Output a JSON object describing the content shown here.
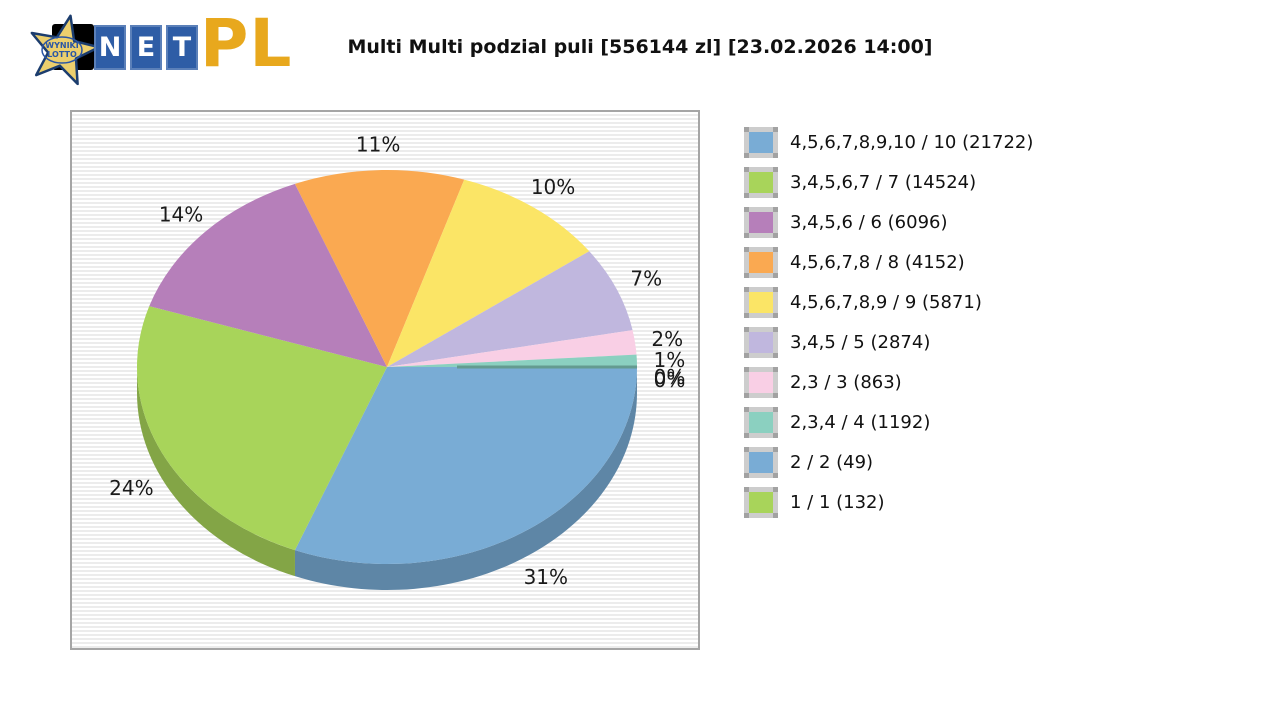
{
  "logo": {
    "star_line1": "WYNIKI",
    "star_line2": "LOTTO",
    "net_letters": [
      "N",
      "E",
      "T"
    ],
    "suffix": "PL",
    "colors": {
      "star_fill": "#eccf6d",
      "star_stroke": "#1c3d6e",
      "box_blue": "#2e5da6",
      "pl_gold": "#e8a81d"
    }
  },
  "title": "Multi Multi podzial puli [556144 zl] [23.02.2026 14:00]",
  "chart_data": {
    "type": "pie",
    "style": "3d",
    "title": "Multi Multi podzial puli [556144 zl] [23.02.2026 14:00]",
    "pool_total": "556144 zl",
    "draw_datetime": "23.02.2026 14:00",
    "unit": "%",
    "start_angle_deg": 0,
    "direction": "clockwise",
    "legend_position": "right",
    "slices": [
      {
        "label": "4,5,6,7,8,9,10 / 10",
        "winners": 21722,
        "percent": 31,
        "color": "#79acd5"
      },
      {
        "label": "3,4,5,6,7 / 7",
        "winners": 14524,
        "percent": 24,
        "color": "#a8d45a"
      },
      {
        "label": "3,4,5,6 / 6",
        "winners": 6096,
        "percent": 14,
        "color": "#b67fba"
      },
      {
        "label": "4,5,6,7,8 / 8",
        "winners": 4152,
        "percent": 11,
        "color": "#faa951"
      },
      {
        "label": "4,5,6,7,8,9 / 9",
        "winners": 5871,
        "percent": 10,
        "color": "#fbe566"
      },
      {
        "label": "3,4,5 / 5",
        "winners": 2874,
        "percent": 7,
        "color": "#c0b7de"
      },
      {
        "label": "2,3 / 3",
        "winners": 863,
        "percent": 2,
        "color": "#f9cfe5"
      },
      {
        "label": "2,3,4 / 4",
        "winners": 1192,
        "percent": 1,
        "color": "#8bd0c0"
      },
      {
        "label": "2 / 2",
        "winners": 49,
        "percent": 0,
        "color": "#79acd5"
      },
      {
        "label": "1 / 1",
        "winners": 132,
        "percent": 0,
        "color": "#a8d45a"
      }
    ],
    "edge_marker_color": "#649b90"
  }
}
